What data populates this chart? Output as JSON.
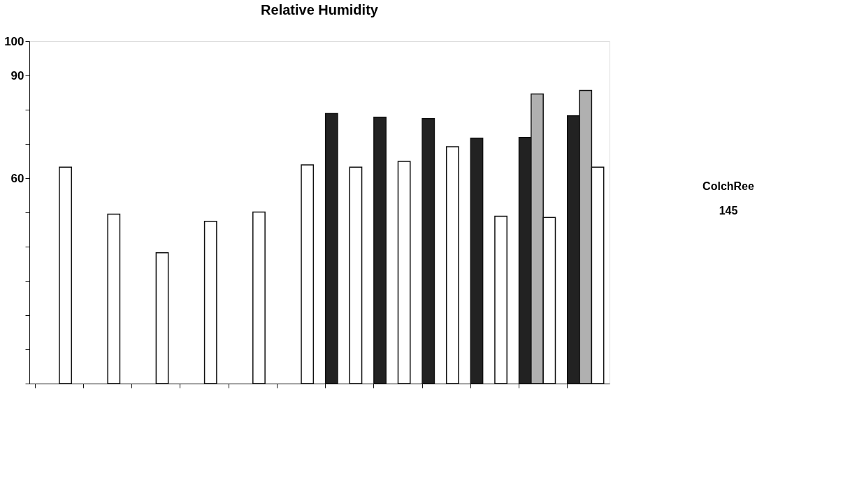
{
  "chart_data": {
    "type": "bar",
    "title": "Relative Humidity",
    "categories": [
      null,
      null,
      null,
      null,
      null,
      null,
      null,
      null,
      null,
      null,
      null,
      null
    ],
    "series": [
      {
        "color": "#222222",
        "values": [
          null,
          null,
          null,
          null,
          null,
          null,
          78.9,
          77.8,
          77.4,
          71.7,
          71.9,
          78.2
        ]
      },
      {
        "color": "#b0b0b0",
        "values": [
          null,
          null,
          null,
          null,
          null,
          null,
          null,
          null,
          null,
          null,
          84.6,
          85.6
        ]
      },
      {
        "color": "#ffffff",
        "values": [
          63.2,
          49.5,
          38.2,
          47.4,
          50.1,
          63.9,
          63.2,
          64.9,
          69.2,
          48.9,
          48.5,
          63.2
        ]
      }
    ],
    "ylim": [
      0,
      100
    ],
    "yticks": [
      {
        "value": 0,
        "label": null
      },
      {
        "value": 10,
        "label": null
      },
      {
        "value": 20,
        "label": null
      },
      {
        "value": 30,
        "label": null
      },
      {
        "value": 40,
        "label": null
      },
      {
        "value": 50,
        "label": null
      },
      60,
      {
        "value": 70,
        "label": null
      },
      {
        "value": 80,
        "label": null
      },
      90,
      100
    ],
    "tick_labels": "y",
    "grid": false,
    "annotations": [
      "ColchRee",
      "145"
    ]
  }
}
